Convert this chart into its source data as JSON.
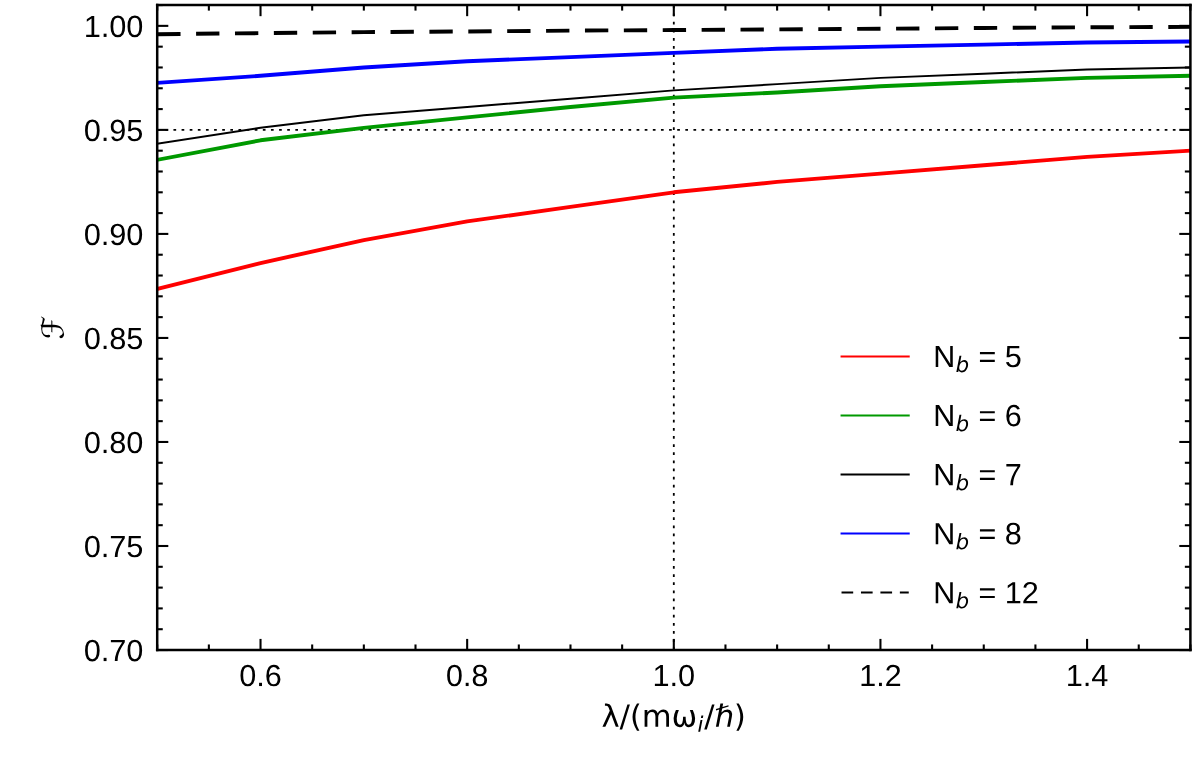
{
  "chart_data": {
    "type": "line",
    "xlabel": "λ/(mω$_{i}$/ℏ)",
    "ylabel": "ℱ",
    "x": [
      0.5,
      0.6,
      0.7,
      0.8,
      0.9,
      1.0,
      1.1,
      1.2,
      1.3,
      1.4,
      1.5
    ],
    "series": [
      {
        "name": "N$_{b}$ = 5",
        "color": "#ff0000",
        "values": [
          0.8736,
          0.886,
          0.897,
          0.906,
          0.913,
          0.92,
          0.925,
          0.929,
          0.933,
          0.937,
          0.94
        ]
      },
      {
        "name": "N$_{b}$ = 6",
        "color": "#009900",
        "values": [
          0.9356,
          0.945,
          0.951,
          0.956,
          0.961,
          0.9655,
          0.968,
          0.971,
          0.973,
          0.975,
          0.976
        ]
      },
      {
        "name": "N$_{b}$ = 7",
        "color": "#000000",
        "values": [
          0.9433,
          0.951,
          0.957,
          0.961,
          0.965,
          0.969,
          0.972,
          0.975,
          0.977,
          0.979,
          0.98
        ]
      },
      {
        "name": "N$_{b}$ = 8",
        "color": "#0000ff",
        "values": [
          0.9726,
          0.976,
          0.98,
          0.983,
          0.985,
          0.987,
          0.989,
          0.99,
          0.991,
          0.992,
          0.9925
        ]
      },
      {
        "name": "N$_{b}$ = 12",
        "color": "#000000",
        "line_style": "dashed",
        "values": [
          0.996,
          0.9965,
          0.997,
          0.9973,
          0.9977,
          0.998,
          0.9983,
          0.9986,
          0.999,
          0.9993,
          0.9995
        ]
      }
    ],
    "xlim": [
      0.5,
      1.5
    ],
    "ylim": [
      0.7,
      1.01
    ],
    "xticks": [
      0.6,
      0.8,
      {
        "value": 1.0,
        "label": "1.0"
      },
      1.2,
      1.4
    ],
    "yticks": [
      {
        "value": 0.7,
        "label": "0.70"
      },
      0.75,
      {
        "value": 0.8,
        "label": "0.80"
      },
      0.85,
      {
        "value": 0.9,
        "label": "0.90"
      },
      0.95,
      {
        "value": 1.0,
        "label": "1.00"
      }
    ],
    "ref_lines": [
      {
        "axis": "y",
        "value": 0.95,
        "line_style": "dotted",
        "color": "#000000"
      },
      {
        "axis": "x",
        "value": 1.0,
        "line_style": "dotted",
        "color": "#000000"
      }
    ],
    "legend": "bottom right",
    "grid": false,
    "marker": "none",
    "line_style": "solid"
  }
}
